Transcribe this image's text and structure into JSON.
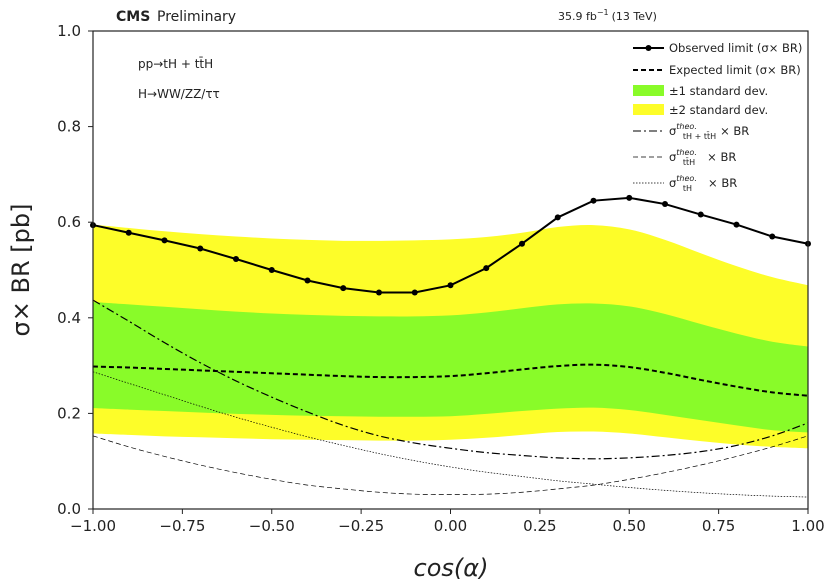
{
  "chart_data": {
    "type": "line",
    "header": {
      "experiment": "CMS",
      "status": "Preliminary",
      "lumi": "35.9 fb",
      "lumi_exp": "−1",
      "energy": "(13 TeV)"
    },
    "annotations": [
      "pp→tH + tt̄H",
      "H→WW/ZZ/ττ"
    ],
    "xlabel": "cos(α)",
    "ylabel": "σ× BR [pb]",
    "xlim": [
      -1.0,
      1.0
    ],
    "ylim": [
      0.0,
      1.0
    ],
    "xticks": [
      "−1.00",
      "−0.75",
      "−0.50",
      "−0.25",
      "0.00",
      "0.25",
      "0.50",
      "0.75",
      "1.00"
    ],
    "xtick_values": [
      -1.0,
      -0.75,
      -0.5,
      -0.25,
      0.0,
      0.25,
      0.5,
      0.75,
      1.0
    ],
    "yticks": [
      "0.0",
      "0.2",
      "0.4",
      "0.6",
      "0.8",
      "1.0"
    ],
    "ytick_values": [
      0.0,
      0.2,
      0.4,
      0.6,
      0.8,
      1.0
    ],
    "x": [
      -1.0,
      -0.9,
      -0.8,
      -0.7,
      -0.6,
      -0.5,
      -0.4,
      -0.3,
      -0.2,
      -0.1,
      0.0,
      0.1,
      0.2,
      0.3,
      0.4,
      0.5,
      0.6,
      0.7,
      0.8,
      0.9,
      1.0
    ],
    "observed": [
      0.594,
      0.578,
      0.562,
      0.545,
      0.523,
      0.5,
      0.478,
      0.462,
      0.453,
      0.453,
      0.468,
      0.504,
      0.555,
      0.61,
      0.645,
      0.651,
      0.638,
      0.616,
      0.595,
      0.57,
      0.555
    ],
    "expected": [
      0.298,
      0.296,
      0.293,
      0.29,
      0.287,
      0.284,
      0.281,
      0.278,
      0.276,
      0.276,
      0.278,
      0.284,
      0.292,
      0.299,
      0.302,
      0.297,
      0.285,
      0.27,
      0.256,
      0.244,
      0.237
    ],
    "band_1sigma_low": [
      0.211,
      0.208,
      0.205,
      0.202,
      0.199,
      0.197,
      0.195,
      0.194,
      0.193,
      0.193,
      0.194,
      0.199,
      0.205,
      0.21,
      0.212,
      0.207,
      0.197,
      0.186,
      0.175,
      0.165,
      0.16
    ],
    "band_1sigma_high": [
      0.433,
      0.428,
      0.423,
      0.418,
      0.413,
      0.409,
      0.406,
      0.404,
      0.403,
      0.403,
      0.405,
      0.411,
      0.42,
      0.428,
      0.43,
      0.424,
      0.408,
      0.387,
      0.367,
      0.35,
      0.34
    ],
    "band_2sigma_low": [
      0.158,
      0.155,
      0.152,
      0.15,
      0.148,
      0.146,
      0.145,
      0.144,
      0.143,
      0.143,
      0.145,
      0.149,
      0.155,
      0.161,
      0.162,
      0.158,
      0.15,
      0.142,
      0.135,
      0.13,
      0.127
    ],
    "band_2sigma_high": [
      0.595,
      0.588,
      0.581,
      0.575,
      0.57,
      0.566,
      0.563,
      0.561,
      0.561,
      0.562,
      0.564,
      0.569,
      0.578,
      0.59,
      0.594,
      0.585,
      0.563,
      0.535,
      0.508,
      0.485,
      0.468
    ],
    "theo_tH_ttH": [
      0.437,
      0.393,
      0.348,
      0.306,
      0.268,
      0.234,
      0.203,
      0.175,
      0.153,
      0.138,
      0.127,
      0.118,
      0.112,
      0.107,
      0.105,
      0.107,
      0.112,
      0.12,
      0.133,
      0.153,
      0.18
    ],
    "theo_ttH": [
      0.153,
      0.13,
      0.11,
      0.092,
      0.076,
      0.062,
      0.05,
      0.042,
      0.035,
      0.031,
      0.03,
      0.031,
      0.035,
      0.042,
      0.05,
      0.062,
      0.076,
      0.092,
      0.11,
      0.13,
      0.153
    ],
    "theo_tH": [
      0.287,
      0.263,
      0.239,
      0.215,
      0.192,
      0.171,
      0.151,
      0.133,
      0.116,
      0.101,
      0.088,
      0.077,
      0.068,
      0.059,
      0.052,
      0.045,
      0.039,
      0.034,
      0.03,
      0.027,
      0.025
    ],
    "legend": {
      "placement": "top-right",
      "observed": "Observed limit (σ× BR)",
      "expected": "Expected limit (σ× BR)",
      "one_sigma": "±1 standard dev.",
      "two_sigma": "±2 standard dev.",
      "theo_sup": "theo.",
      "theo_tH_ttH_sub": "tH + tt̄H",
      "theo_ttH_sub": "tt̄H",
      "theo_tH_sub": "tH",
      "theo_suffix": "× BR",
      "sigma": "σ"
    },
    "colors": {
      "band_1sigma": "#89fb29",
      "band_2sigma": "#fdfd29",
      "line": "#000000"
    }
  }
}
